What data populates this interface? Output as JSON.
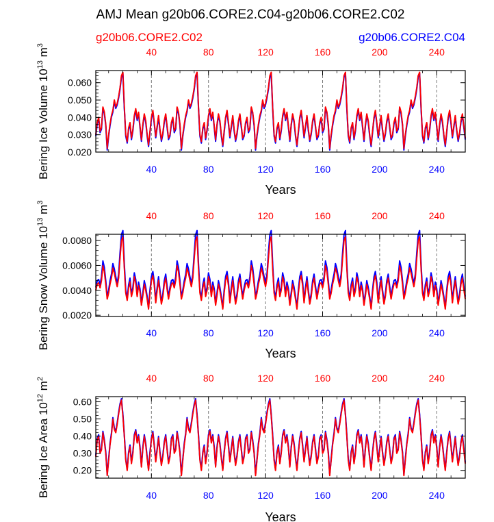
{
  "title": "AMJ Mean g20b06.CORE2.C04-g20b06.CORE2.C02",
  "legend": {
    "left": "g20b06.CORE2.C02",
    "right": "g20b06.CORE2.C04",
    "left_color": "#ff0000",
    "right_color": "#0000ff"
  },
  "colors": {
    "case1": "#ff0000",
    "case2": "#0000ff",
    "axis": "#000000",
    "refline": "#777777"
  },
  "chart_data": [
    {
      "type": "line",
      "ylabel": "Bering Ice Volume 10",
      "ylabel_exp": "13",
      "ylabel_unit": " m",
      "ylabel_unit_exp": "3",
      "xlabel": "Years",
      "xlim": [
        1,
        260
      ],
      "ylim": [
        0.02,
        0.067
      ],
      "yticks": [
        0.02,
        0.03,
        0.04,
        0.05,
        0.06
      ],
      "ytick_labels": [
        "0.020",
        "0.030",
        "0.040",
        "0.050",
        "0.060"
      ],
      "xticks": [
        40,
        80,
        120,
        160,
        200,
        240
      ],
      "xtick_labels": [
        "40",
        "80",
        "120",
        "160",
        "200",
        "240"
      ],
      "cycle": [
        0.03,
        0.037,
        0.04,
        0.032,
        0.034,
        0.046,
        0.043,
        0.036,
        0.022,
        0.03,
        0.036,
        0.041,
        0.044,
        0.05,
        0.046,
        0.048,
        0.052,
        0.057,
        0.064,
        0.066,
        0.046,
        0.03,
        0.026,
        0.034,
        0.037,
        0.028,
        0.033,
        0.041,
        0.045,
        0.039,
        0.043,
        0.035,
        0.027,
        0.036,
        0.042,
        0.038,
        0.03,
        0.024,
        0.032,
        0.04,
        0.044,
        0.037,
        0.029,
        0.035,
        0.041,
        0.033,
        0.027,
        0.031,
        0.038,
        0.042,
        0.035,
        0.028
      ],
      "series": [
        {
          "name": "g20b06.CORE2.C02",
          "color": "#ff0000",
          "scale": 1.0,
          "offset": 0.0,
          "repeat": 5
        },
        {
          "name": "g20b06.CORE2.C04",
          "color": "#0000ff",
          "scale": 1.0,
          "offset": -0.0008,
          "repeat": 5
        }
      ]
    },
    {
      "type": "line",
      "ylabel": "Bering Snow Volume 10",
      "ylabel_exp": "13",
      "ylabel_unit": " m",
      "ylabel_unit_exp": "3",
      "xlabel": "Years",
      "xlim": [
        1,
        260
      ],
      "ylim": [
        0.0019,
        0.0085
      ],
      "yticks": [
        0.002,
        0.004,
        0.006,
        0.008
      ],
      "ytick_labels": [
        "0.0020",
        "0.0040",
        "0.0060",
        "0.0080"
      ],
      "xticks": [
        40,
        80,
        120,
        160,
        200,
        240
      ],
      "xtick_labels": [
        "40",
        "80",
        "120",
        "160",
        "200",
        "240"
      ],
      "cycle": [
        0.004,
        0.0045,
        0.0046,
        0.0042,
        0.0048,
        0.006,
        0.0055,
        0.0045,
        0.0033,
        0.0038,
        0.0045,
        0.005,
        0.0058,
        0.0054,
        0.0048,
        0.0043,
        0.005,
        0.0066,
        0.008,
        0.0083,
        0.0058,
        0.0038,
        0.0032,
        0.0042,
        0.0047,
        0.0035,
        0.004,
        0.0051,
        0.0046,
        0.0035,
        0.0044,
        0.0039,
        0.0028,
        0.0036,
        0.0045,
        0.004,
        0.0033,
        0.0025,
        0.0038,
        0.0048,
        0.0052,
        0.0044,
        0.003,
        0.004,
        0.0048,
        0.0038,
        0.0029,
        0.0035,
        0.0045,
        0.005,
        0.0041,
        0.0033
      ],
      "series": [
        {
          "name": "g20b06.CORE2.C02",
          "color": "#ff0000",
          "scale": 1.0,
          "offset": 0.0,
          "repeat": 5
        },
        {
          "name": "g20b06.CORE2.C04",
          "color": "#0000ff",
          "scale": 1.06,
          "offset": 0.0,
          "repeat": 5
        }
      ]
    },
    {
      "type": "line",
      "ylabel": "Bering Ice Area 10",
      "ylabel_exp": "12",
      "ylabel_unit": " m",
      "ylabel_unit_exp": "2",
      "xlabel": "Years",
      "xlim": [
        1,
        260
      ],
      "ylim": [
        0.155,
        0.63
      ],
      "yticks": [
        0.2,
        0.3,
        0.4,
        0.5,
        0.6
      ],
      "ytick_labels": [
        "0.20",
        "0.30",
        "0.40",
        "0.50",
        "0.60"
      ],
      "xticks": [
        40,
        80,
        120,
        160,
        200,
        240
      ],
      "xtick_labels": [
        "40",
        "80",
        "120",
        "160",
        "200",
        "240"
      ],
      "cycle": [
        0.28,
        0.38,
        0.4,
        0.3,
        0.32,
        0.42,
        0.37,
        0.3,
        0.17,
        0.26,
        0.35,
        0.41,
        0.5,
        0.44,
        0.42,
        0.47,
        0.53,
        0.58,
        0.61,
        0.52,
        0.4,
        0.26,
        0.2,
        0.3,
        0.34,
        0.24,
        0.3,
        0.4,
        0.43,
        0.36,
        0.4,
        0.33,
        0.22,
        0.33,
        0.4,
        0.35,
        0.27,
        0.2,
        0.3,
        0.38,
        0.42,
        0.34,
        0.25,
        0.32,
        0.39,
        0.3,
        0.23,
        0.28,
        0.36,
        0.4,
        0.32,
        0.24
      ],
      "series": [
        {
          "name": "g20b06.CORE2.C02",
          "color": "#ff0000",
          "scale": 1.0,
          "offset": 0.0,
          "repeat": 5
        },
        {
          "name": "g20b06.CORE2.C04",
          "color": "#0000ff",
          "scale": 1.0,
          "offset": 0.008,
          "repeat": 5
        }
      ]
    }
  ]
}
